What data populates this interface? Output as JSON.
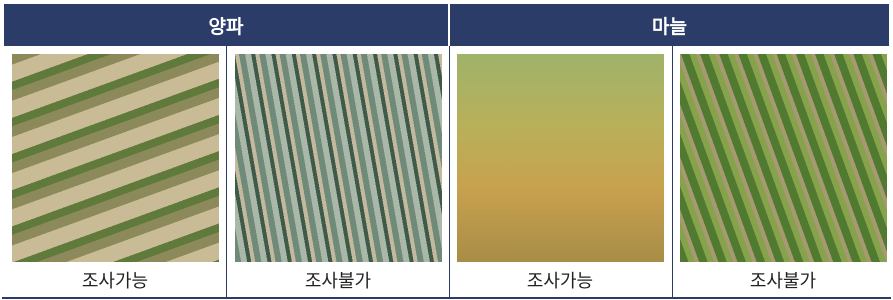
{
  "header": {
    "groups": [
      "양파",
      "마늘"
    ]
  },
  "table": {
    "captions": [
      "조사가능",
      "조사불가",
      "조사가능",
      "조사불가"
    ]
  }
}
